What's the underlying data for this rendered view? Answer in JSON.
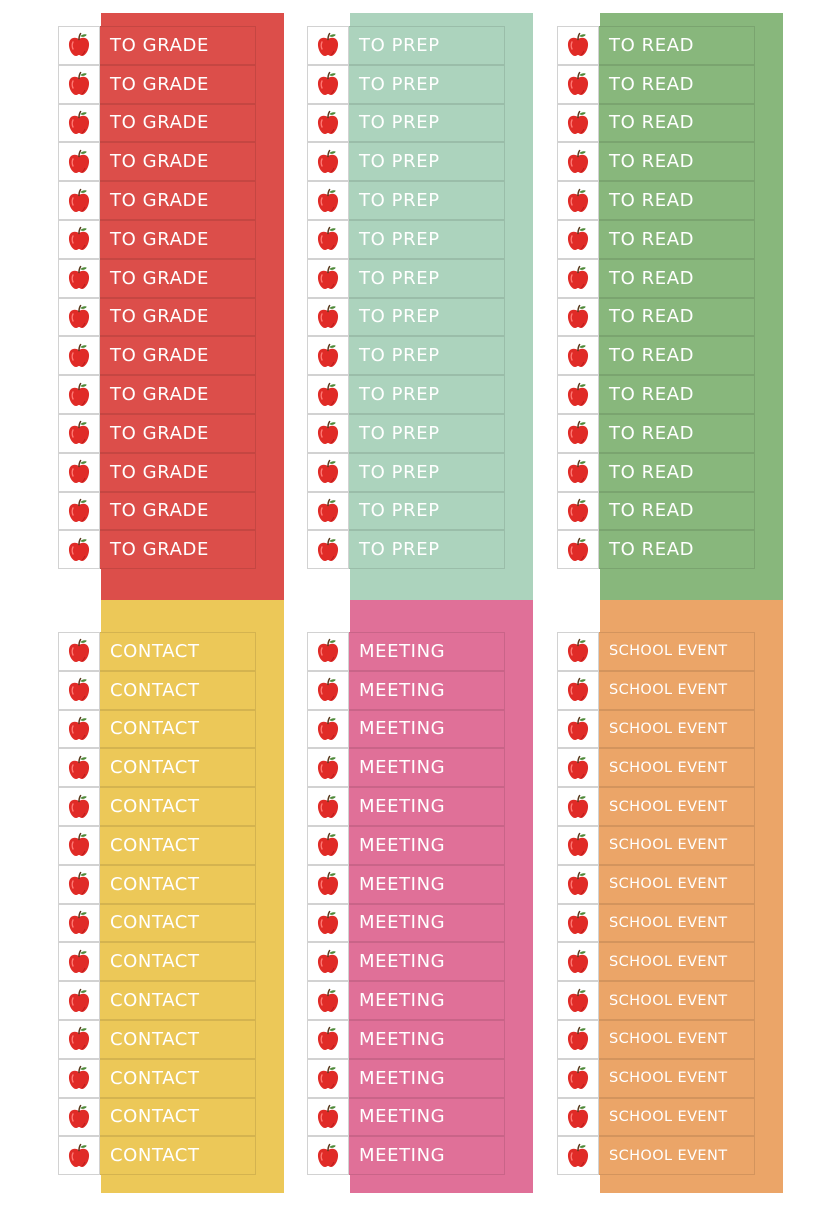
{
  "sheets": [
    {
      "id": "grade",
      "label": "TO GRADE",
      "color": "#dc4e4a",
      "icon": "apple-icon",
      "count": 14
    },
    {
      "id": "prep",
      "label": "TO PREP",
      "color": "#acd3bd",
      "icon": "apple-icon",
      "count": 14
    },
    {
      "id": "read",
      "label": "TO READ",
      "color": "#88b77c",
      "icon": "apple-icon",
      "count": 14
    },
    {
      "id": "contact",
      "label": "CONTACT",
      "color": "#ecc858",
      "icon": "apple-icon",
      "count": 14
    },
    {
      "id": "meeting",
      "label": "MEETING",
      "color": "#e07098",
      "icon": "apple-icon",
      "count": 14
    },
    {
      "id": "event",
      "label": "SCHOOL EVENT",
      "color": "#eba568",
      "icon": "apple-icon",
      "count": 14
    }
  ],
  "colors": {
    "apple_red": "#e02b27",
    "apple_shade": "#b81d1d",
    "apple_stem": "#5a3a1e",
    "apple_leaf": "#4f8a3a",
    "cell_border": "#d2d2d2",
    "label_text": "#ffffff"
  }
}
